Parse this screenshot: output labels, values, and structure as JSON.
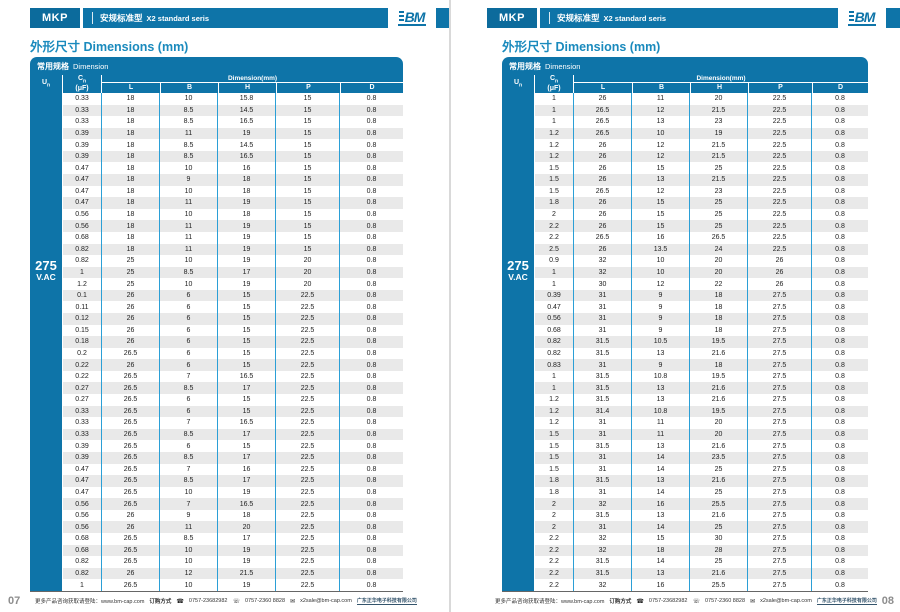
{
  "colors": {
    "accent": "#0e74a8",
    "line_blue": "#2b9fd6",
    "row_alt": "#e9e9e9",
    "title": "#1a8abd"
  },
  "header": {
    "badge": "MKP",
    "series_zh": "安规标准型",
    "series_en": "X2 standard seris",
    "logo_text": "BM"
  },
  "section_title": "外形尺寸 Dimensions (mm)",
  "table": {
    "banner_zh": "常用规格",
    "banner_en": "Dimension",
    "un_main": "U",
    "un_sub": "n",
    "cn_main": "C",
    "cn_sub": "n",
    "cn_unit": "(μF)",
    "dim_header": "Dimension(mm)",
    "dim_cols": [
      "L",
      "B",
      "H",
      "P",
      "D"
    ],
    "voltage": "275",
    "voltage_unit": "V.AC"
  },
  "footer": {
    "info": "更多产品咨询获取请登陆：www.bm-cap.com",
    "order_label": "订购方式",
    "phone1": "0757-23682982",
    "phone2": "0757-2360 8828",
    "email": "x2sale@bm-cap.com",
    "company": "广东正华电子科技有限公司"
  },
  "pages": [
    {
      "page_number": "07",
      "rows": [
        [
          "0.33",
          "18",
          "10",
          "15.8",
          "15",
          "0.8"
        ],
        [
          "0.33",
          "18",
          "8.5",
          "14.5",
          "15",
          "0.8"
        ],
        [
          "0.33",
          "18",
          "8.5",
          "16.5",
          "15",
          "0.8"
        ],
        [
          "0.39",
          "18",
          "11",
          "19",
          "15",
          "0.8"
        ],
        [
          "0.39",
          "18",
          "8.5",
          "14.5",
          "15",
          "0.8"
        ],
        [
          "0.39",
          "18",
          "8.5",
          "16.5",
          "15",
          "0.8"
        ],
        [
          "0.47",
          "18",
          "10",
          "16",
          "15",
          "0.8"
        ],
        [
          "0.47",
          "18",
          "9",
          "18",
          "15",
          "0.8"
        ],
        [
          "0.47",
          "18",
          "10",
          "18",
          "15",
          "0.8"
        ],
        [
          "0.47",
          "18",
          "11",
          "19",
          "15",
          "0.8"
        ],
        [
          "0.56",
          "18",
          "10",
          "18",
          "15",
          "0.8"
        ],
        [
          "0.56",
          "18",
          "11",
          "19",
          "15",
          "0.8"
        ],
        [
          "0.68",
          "18",
          "11",
          "19",
          "15",
          "0.8"
        ],
        [
          "0.82",
          "18",
          "11",
          "19",
          "15",
          "0.8"
        ],
        [
          "0.82",
          "25",
          "10",
          "19",
          "20",
          "0.8"
        ],
        [
          "1",
          "25",
          "8.5",
          "17",
          "20",
          "0.8"
        ],
        [
          "1.2",
          "25",
          "10",
          "19",
          "20",
          "0.8"
        ],
        [
          "0.1",
          "26",
          "6",
          "15",
          "22.5",
          "0.8"
        ],
        [
          "0.11",
          "26",
          "6",
          "15",
          "22.5",
          "0.8"
        ],
        [
          "0.12",
          "26",
          "6",
          "15",
          "22.5",
          "0.8"
        ],
        [
          "0.15",
          "26",
          "6",
          "15",
          "22.5",
          "0.8"
        ],
        [
          "0.18",
          "26",
          "6",
          "15",
          "22.5",
          "0.8"
        ],
        [
          "0.2",
          "26.5",
          "6",
          "15",
          "22.5",
          "0.8"
        ],
        [
          "0.22",
          "26",
          "6",
          "15",
          "22.5",
          "0.8"
        ],
        [
          "0.22",
          "26.5",
          "7",
          "16.5",
          "22.5",
          "0.8"
        ],
        [
          "0.27",
          "26.5",
          "8.5",
          "17",
          "22.5",
          "0.8"
        ],
        [
          "0.27",
          "26.5",
          "6",
          "15",
          "22.5",
          "0.8"
        ],
        [
          "0.33",
          "26.5",
          "6",
          "15",
          "22.5",
          "0.8"
        ],
        [
          "0.33",
          "26.5",
          "7",
          "16.5",
          "22.5",
          "0.8"
        ],
        [
          "0.33",
          "26.5",
          "8.5",
          "17",
          "22.5",
          "0.8"
        ],
        [
          "0.39",
          "26.5",
          "6",
          "15",
          "22.5",
          "0.8"
        ],
        [
          "0.39",
          "26.5",
          "8.5",
          "17",
          "22.5",
          "0.8"
        ],
        [
          "0.47",
          "26.5",
          "7",
          "16",
          "22.5",
          "0.8"
        ],
        [
          "0.47",
          "26.5",
          "8.5",
          "17",
          "22.5",
          "0.8"
        ],
        [
          "0.47",
          "26.5",
          "10",
          "19",
          "22.5",
          "0.8"
        ],
        [
          "0.56",
          "26.5",
          "7",
          "16.5",
          "22.5",
          "0.8"
        ],
        [
          "0.56",
          "26",
          "9",
          "18",
          "22.5",
          "0.8"
        ],
        [
          "0.56",
          "26",
          "11",
          "20",
          "22.5",
          "0.8"
        ],
        [
          "0.68",
          "26.5",
          "8.5",
          "17",
          "22.5",
          "0.8"
        ],
        [
          "0.68",
          "26.5",
          "10",
          "19",
          "22.5",
          "0.8"
        ],
        [
          "0.82",
          "26.5",
          "10",
          "19",
          "22.5",
          "0.8"
        ],
        [
          "0.82",
          "26",
          "12",
          "21.5",
          "22.5",
          "0.8"
        ],
        [
          "1",
          "26.5",
          "10",
          "19",
          "22.5",
          "0.8"
        ]
      ]
    },
    {
      "page_number": "08",
      "rows": [
        [
          "1",
          "26",
          "11",
          "20",
          "22.5",
          "0.8"
        ],
        [
          "1",
          "26.5",
          "12",
          "21.5",
          "22.5",
          "0.8"
        ],
        [
          "1",
          "26.5",
          "13",
          "23",
          "22.5",
          "0.8"
        ],
        [
          "1.2",
          "26.5",
          "10",
          "19",
          "22.5",
          "0.8"
        ],
        [
          "1.2",
          "26",
          "12",
          "21.5",
          "22.5",
          "0.8"
        ],
        [
          "1.2",
          "26",
          "12",
          "21.5",
          "22.5",
          "0.8"
        ],
        [
          "1.5",
          "26",
          "15",
          "25",
          "22.5",
          "0.8"
        ],
        [
          "1.5",
          "26",
          "13",
          "21.5",
          "22.5",
          "0.8"
        ],
        [
          "1.5",
          "26.5",
          "12",
          "23",
          "22.5",
          "0.8"
        ],
        [
          "1.8",
          "26",
          "15",
          "25",
          "22.5",
          "0.8"
        ],
        [
          "2",
          "26",
          "15",
          "25",
          "22.5",
          "0.8"
        ],
        [
          "2.2",
          "26",
          "15",
          "25",
          "22.5",
          "0.8"
        ],
        [
          "2.2",
          "26.5",
          "16",
          "26.5",
          "22.5",
          "0.8"
        ],
        [
          "2.5",
          "26",
          "13.5",
          "24",
          "22.5",
          "0.8"
        ],
        [
          "0.9",
          "32",
          "10",
          "20",
          "26",
          "0.8"
        ],
        [
          "1",
          "32",
          "10",
          "20",
          "26",
          "0.8"
        ],
        [
          "1",
          "30",
          "12",
          "22",
          "26",
          "0.8"
        ],
        [
          "0.39",
          "31",
          "9",
          "18",
          "27.5",
          "0.8"
        ],
        [
          "0.47",
          "31",
          "9",
          "18",
          "27.5",
          "0.8"
        ],
        [
          "0.56",
          "31",
          "9",
          "18",
          "27.5",
          "0.8"
        ],
        [
          "0.68",
          "31",
          "9",
          "18",
          "27.5",
          "0.8"
        ],
        [
          "0.82",
          "31.5",
          "10.5",
          "19.5",
          "27.5",
          "0.8"
        ],
        [
          "0.82",
          "31.5",
          "13",
          "21.6",
          "27.5",
          "0.8"
        ],
        [
          "0.83",
          "31",
          "9",
          "18",
          "27.5",
          "0.8"
        ],
        [
          "1",
          "31.5",
          "10.8",
          "19.5",
          "27.5",
          "0.8"
        ],
        [
          "1",
          "31.5",
          "13",
          "21.6",
          "27.5",
          "0.8"
        ],
        [
          "1.2",
          "31.5",
          "13",
          "21.6",
          "27.5",
          "0.8"
        ],
        [
          "1.2",
          "31.4",
          "10.8",
          "19.5",
          "27.5",
          "0.8"
        ],
        [
          "1.2",
          "31",
          "11",
          "20",
          "27.5",
          "0.8"
        ],
        [
          "1.5",
          "31",
          "11",
          "20",
          "27.5",
          "0.8"
        ],
        [
          "1.5",
          "31.5",
          "13",
          "21.6",
          "27.5",
          "0.8"
        ],
        [
          "1.5",
          "31",
          "14",
          "23.5",
          "27.5",
          "0.8"
        ],
        [
          "1.5",
          "31",
          "14",
          "25",
          "27.5",
          "0.8"
        ],
        [
          "1.8",
          "31.5",
          "13",
          "21.6",
          "27.5",
          "0.8"
        ],
        [
          "1.8",
          "31",
          "14",
          "25",
          "27.5",
          "0.8"
        ],
        [
          "2",
          "32",
          "16",
          "25.5",
          "27.5",
          "0.8"
        ],
        [
          "2",
          "31.5",
          "13",
          "21.6",
          "27.5",
          "0.8"
        ],
        [
          "2",
          "31",
          "14",
          "25",
          "27.5",
          "0.8"
        ],
        [
          "2.2",
          "32",
          "15",
          "30",
          "27.5",
          "0.8"
        ],
        [
          "2.2",
          "32",
          "18",
          "28",
          "27.5",
          "0.8"
        ],
        [
          "2.2",
          "31.5",
          "14",
          "25",
          "27.5",
          "0.8"
        ],
        [
          "2.2",
          "31.5",
          "13",
          "21.6",
          "27.5",
          "0.8"
        ],
        [
          "2.2",
          "32",
          "16",
          "25.5",
          "27.5",
          "0.8"
        ]
      ]
    }
  ]
}
